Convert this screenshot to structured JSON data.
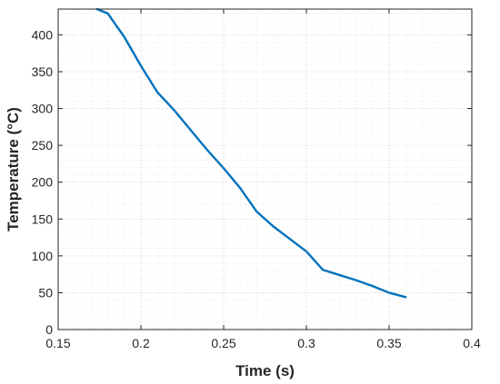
{
  "chart_data": {
    "type": "line",
    "xlabel": "Time (s)",
    "ylabel": "Temperature (°C)",
    "xlim": [
      0.15,
      0.4
    ],
    "ylim": [
      0,
      435
    ],
    "xticks": [
      0.15,
      0.2,
      0.25,
      0.3,
      0.35,
      0.4
    ],
    "xtick_labels": [
      "0.15",
      "0.2",
      "0.25",
      "0.3",
      "0.35",
      "0.4"
    ],
    "yticks": [
      0,
      50,
      100,
      150,
      200,
      250,
      300,
      350,
      400
    ],
    "ytick_labels": [
      "0",
      "50",
      "100",
      "150",
      "200",
      "250",
      "300",
      "350",
      "400"
    ],
    "grid": "on (major and minor, dotted)",
    "colors": {
      "series": "#0072BD",
      "axis": "#262626",
      "grid": "#d0d0d0"
    },
    "series": [
      {
        "x": [
          0.1735,
          0.18,
          0.19,
          0.2,
          0.21,
          0.22,
          0.23,
          0.24,
          0.25,
          0.26,
          0.27,
          0.28,
          0.29,
          0.3,
          0.31,
          0.32,
          0.33,
          0.34,
          0.35,
          0.36
        ],
        "y": [
          435,
          429,
          397,
          358,
          322,
          298,
          271,
          244,
          219,
          192,
          160,
          140,
          123,
          106,
          81,
          74,
          67,
          59,
          50,
          44
        ]
      }
    ]
  }
}
